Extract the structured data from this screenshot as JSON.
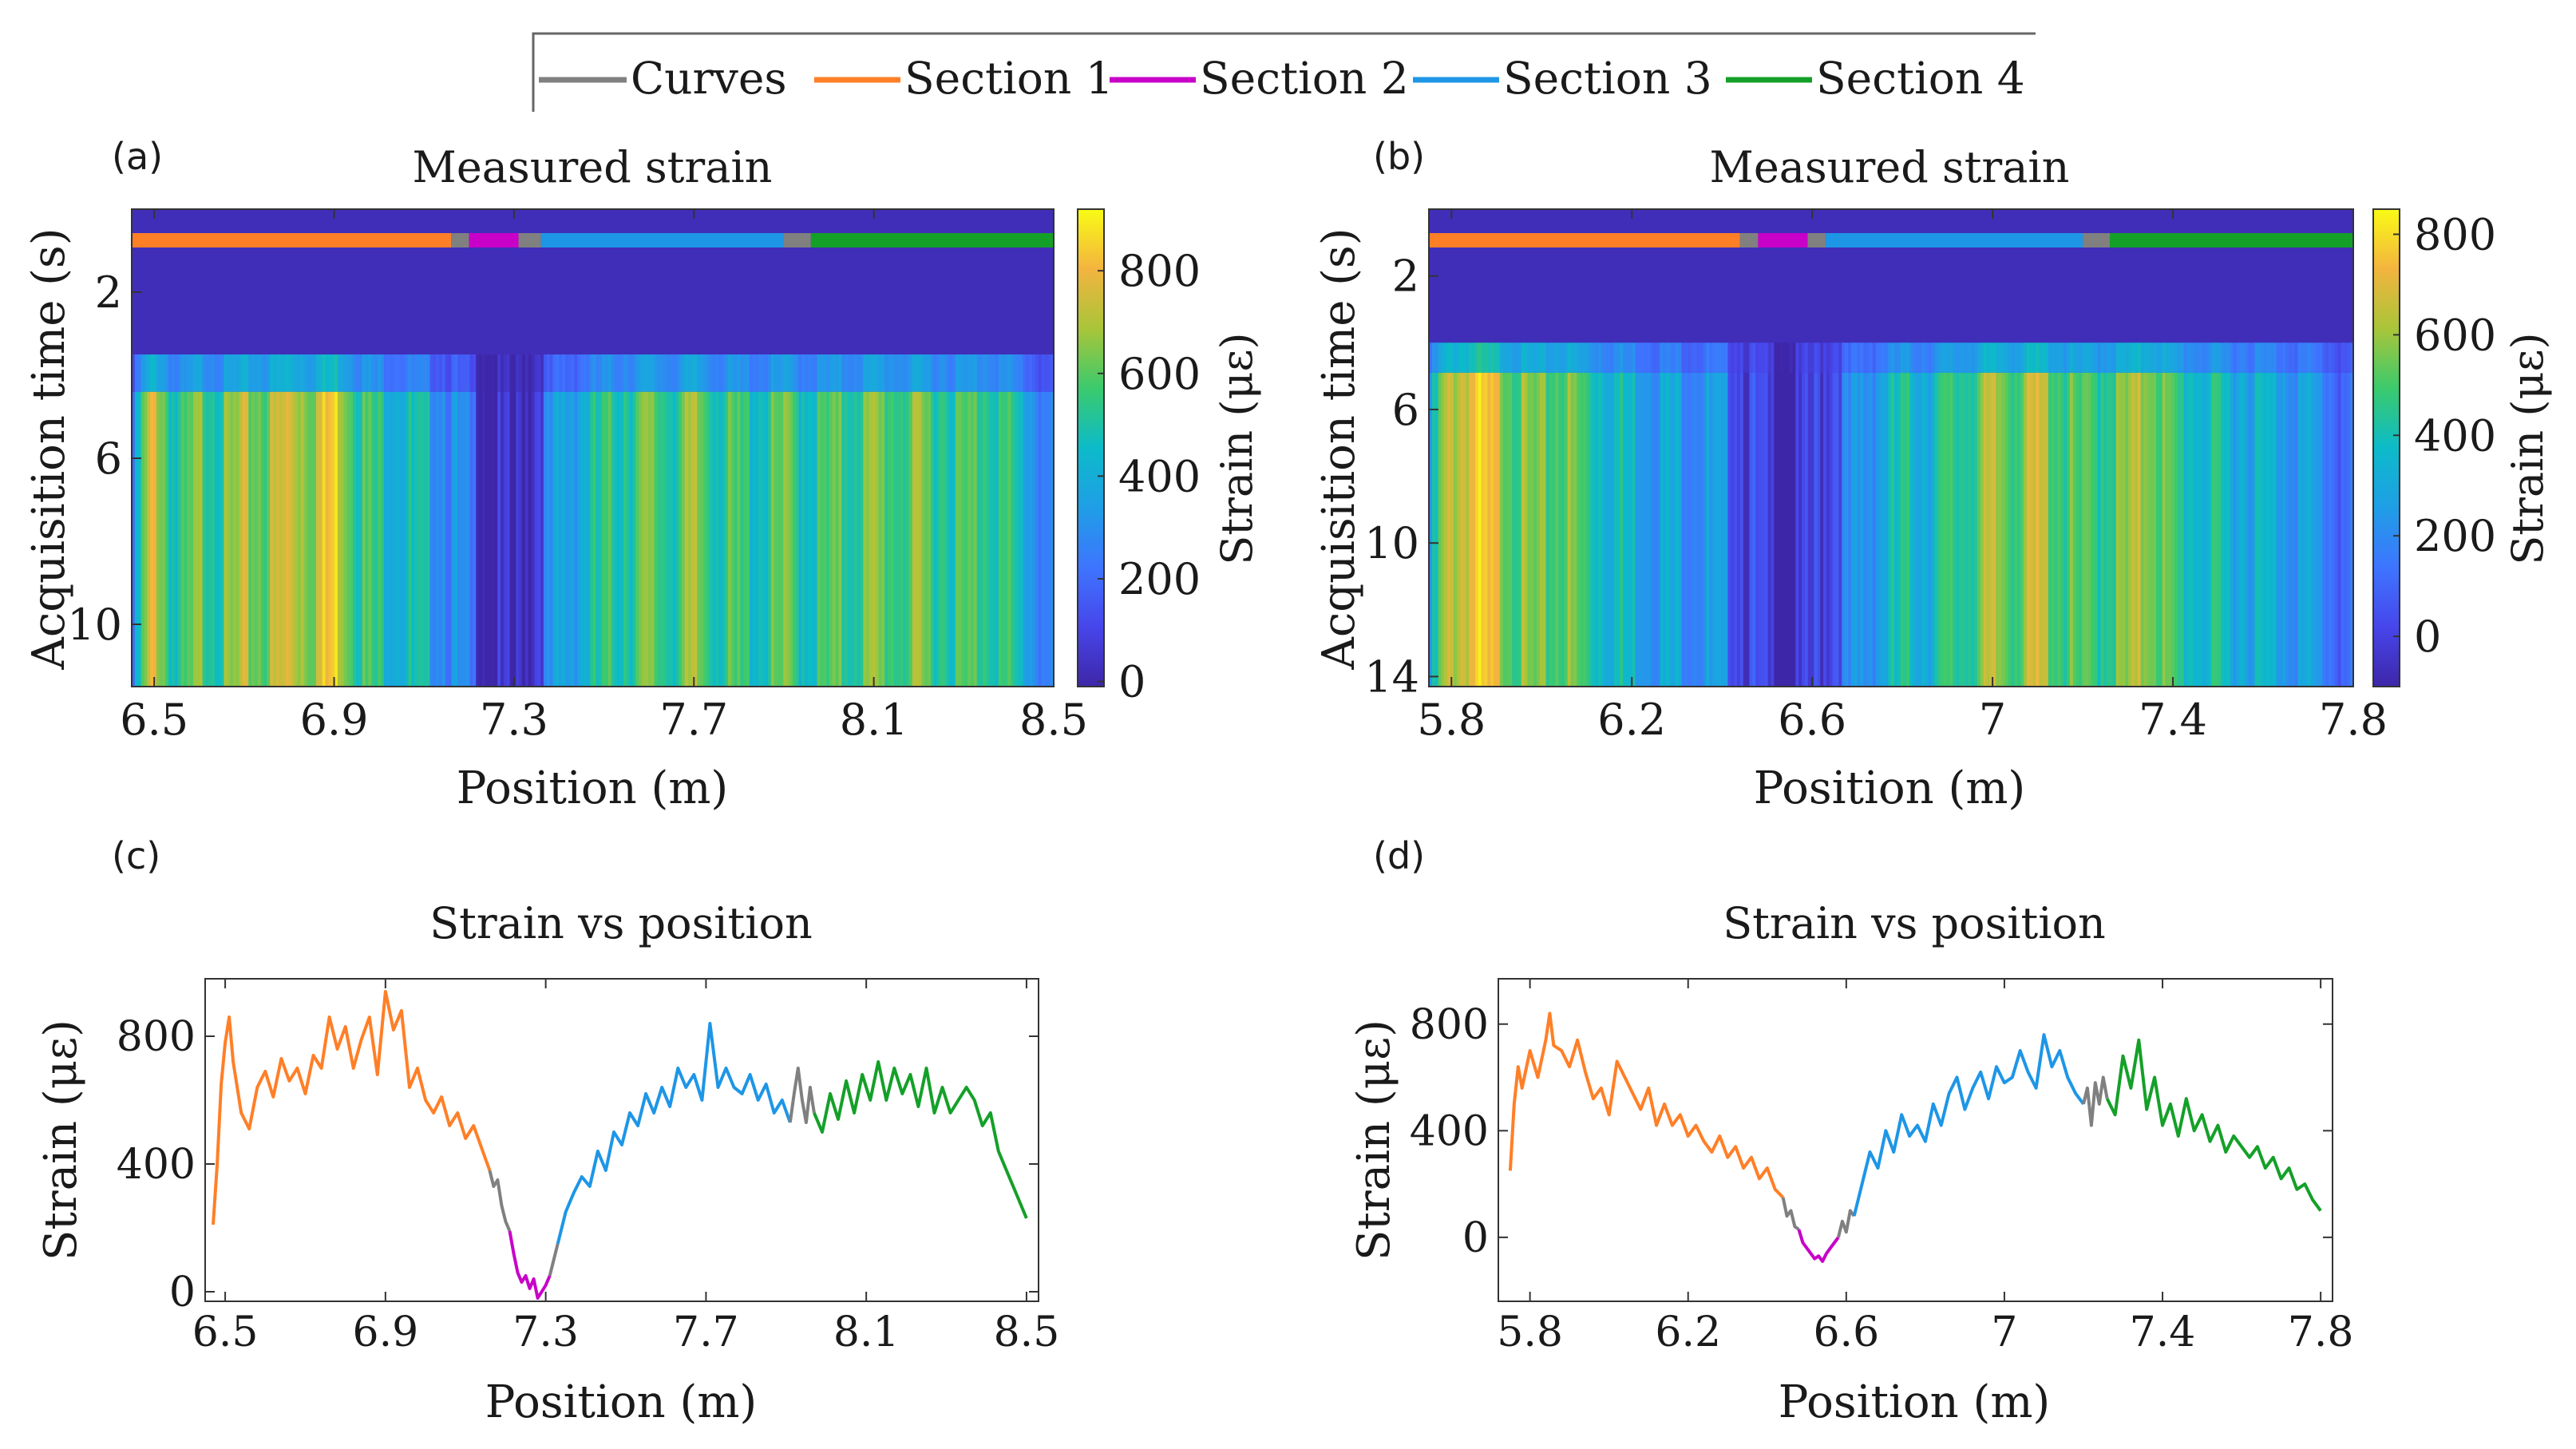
{
  "legend": {
    "items": [
      {
        "label": "Curves",
        "color": "#808080"
      },
      {
        "label": "Section 1",
        "color": "#ff7f27"
      },
      {
        "label": "Section 2",
        "color": "#c800c8"
      },
      {
        "label": "Section 3",
        "color": "#1e96e6"
      },
      {
        "label": "Section 4",
        "color": "#14a028"
      }
    ]
  },
  "panels": {
    "a": {
      "tag": "(a)",
      "title": "Measured strain",
      "xlabel": "Position (m)",
      "ylabel": "Acquisition time (s)",
      "cbar_label": "Strain (με)"
    },
    "b": {
      "tag": "(b)",
      "title": "Measured strain",
      "xlabel": "Position (m)",
      "ylabel": "Acquisition time (s)",
      "cbar_label": "Strain (με)"
    },
    "c": {
      "tag": "(c)",
      "title": "Strain vs position",
      "xlabel": "Position (m)",
      "ylabel": "Strain (με)"
    },
    "d": {
      "tag": "(d)",
      "title": "Strain vs position",
      "xlabel": "Position (m)",
      "ylabel": "Strain (με)"
    }
  },
  "chart_data": [
    {
      "id": "a",
      "type": "heatmap",
      "title": "Measured strain",
      "xlabel": "Position (m)",
      "ylabel": "Acquisition time (s)",
      "xlim": [
        6.45,
        8.5
      ],
      "ylim": [
        0,
        11.5
      ],
      "xticks": [
        6.5,
        6.9,
        7.3,
        7.7,
        8.1,
        8.5
      ],
      "xtick_labels": [
        "6.5",
        "6.9",
        "7.3",
        "7.7",
        "8.1",
        "8.5"
      ],
      "yticks": [
        2,
        6,
        10
      ],
      "ytick_labels": [
        "2",
        "6",
        "10"
      ],
      "clim": [
        -10,
        920
      ],
      "cticks": [
        0,
        200,
        400,
        600,
        800
      ],
      "ctick_labels": [
        "0",
        "200",
        "400",
        "600",
        "800"
      ],
      "load_onset_s": 3.5,
      "segments": [
        {
          "section": "Section 1",
          "from": 6.45,
          "to": 7.16
        },
        {
          "section": "Curves",
          "from": 7.16,
          "to": 7.2
        },
        {
          "section": "Section 2",
          "from": 7.2,
          "to": 7.31
        },
        {
          "section": "Curves",
          "from": 7.31,
          "to": 7.36
        },
        {
          "section": "Section 3",
          "from": 7.36,
          "to": 7.9
        },
        {
          "section": "Curves",
          "from": 7.9,
          "to": 7.96
        },
        {
          "section": "Section 4",
          "from": 7.96,
          "to": 8.5
        }
      ],
      "profile_x": [
        6.45,
        6.47,
        6.5,
        6.55,
        6.6,
        6.65,
        6.7,
        6.75,
        6.8,
        6.85,
        6.9,
        6.95,
        7.0,
        7.05,
        7.1,
        7.15,
        7.2,
        7.25,
        7.3,
        7.35,
        7.4,
        7.45,
        7.5,
        7.55,
        7.6,
        7.65,
        7.7,
        7.75,
        7.8,
        7.85,
        7.9,
        7.95,
        8.0,
        8.05,
        8.1,
        8.15,
        8.2,
        8.25,
        8.3,
        8.35,
        8.4,
        8.45,
        8.5
      ],
      "profile_strain": [
        200,
        550,
        850,
        500,
        680,
        620,
        720,
        700,
        820,
        750,
        900,
        650,
        560,
        520,
        470,
        380,
        250,
        70,
        30,
        180,
        380,
        480,
        550,
        620,
        650,
        600,
        700,
        600,
        580,
        560,
        640,
        560,
        600,
        620,
        680,
        640,
        660,
        620,
        600,
        650,
        560,
        420,
        240
      ]
    },
    {
      "id": "b",
      "type": "heatmap",
      "title": "Measured strain",
      "xlabel": "Position (m)",
      "ylabel": "Acquisition time (s)",
      "xlim": [
        5.75,
        7.8
      ],
      "ylim": [
        0,
        14.3
      ],
      "xticks": [
        5.8,
        6.2,
        6.6,
        7.0,
        7.4,
        7.8
      ],
      "xtick_labels": [
        "5.8",
        "6.2",
        "6.6",
        "7",
        "7.4",
        "7.8"
      ],
      "yticks": [
        2,
        6,
        10,
        14
      ],
      "ytick_labels": [
        "2",
        "6",
        "10",
        "14"
      ],
      "clim": [
        -100,
        850
      ],
      "cticks": [
        0,
        200,
        400,
        600,
        800
      ],
      "ctick_labels": [
        "0",
        "200",
        "400",
        "600",
        "800"
      ],
      "load_onset_s": 4.0,
      "segments": [
        {
          "section": "Section 1",
          "from": 5.75,
          "to": 6.44
        },
        {
          "section": "Curves",
          "from": 6.44,
          "to": 6.48
        },
        {
          "section": "Section 2",
          "from": 6.48,
          "to": 6.59
        },
        {
          "section": "Curves",
          "from": 6.59,
          "to": 6.63
        },
        {
          "section": "Section 3",
          "from": 6.63,
          "to": 7.2
        },
        {
          "section": "Curves",
          "from": 7.2,
          "to": 7.26
        },
        {
          "section": "Section 4",
          "from": 7.26,
          "to": 7.8
        }
      ],
      "profile_x": [
        5.75,
        5.78,
        5.8,
        5.85,
        5.9,
        5.95,
        6.0,
        6.05,
        6.1,
        6.15,
        6.2,
        6.25,
        6.3,
        6.35,
        6.4,
        6.45,
        6.5,
        6.55,
        6.6,
        6.65,
        6.7,
        6.75,
        6.8,
        6.85,
        6.9,
        6.95,
        7.0,
        7.05,
        7.1,
        7.15,
        7.2,
        7.25,
        7.3,
        7.35,
        7.4,
        7.45,
        7.5,
        7.55,
        7.6,
        7.65,
        7.7,
        7.75,
        7.8
      ],
      "profile_strain": [
        250,
        600,
        700,
        800,
        720,
        600,
        550,
        620,
        520,
        450,
        400,
        350,
        330,
        300,
        250,
        100,
        0,
        -70,
        30,
        150,
        250,
        350,
        450,
        420,
        480,
        550,
        650,
        600,
        700,
        580,
        500,
        560,
        600,
        700,
        500,
        460,
        420,
        400,
        380,
        350,
        300,
        230,
        120
      ]
    },
    {
      "id": "c",
      "type": "line",
      "title": "Strain vs position",
      "xlabel": "Position (m)",
      "ylabel": "Strain (με)",
      "xlim": [
        6.45,
        8.53
      ],
      "ylim": [
        -30,
        980
      ],
      "xticks": [
        6.5,
        6.9,
        7.3,
        7.7,
        8.1,
        8.5
      ],
      "xtick_labels": [
        "6.5",
        "6.9",
        "7.3",
        "7.7",
        "8.1",
        "8.5"
      ],
      "yticks": [
        0,
        400,
        800
      ],
      "ytick_labels": [
        "0",
        "400",
        "800"
      ],
      "series": [
        {
          "name": "Section 1",
          "x": [
            6.47,
            6.48,
            6.49,
            6.5,
            6.51,
            6.52,
            6.54,
            6.56,
            6.58,
            6.6,
            6.62,
            6.64,
            6.66,
            6.68,
            6.7,
            6.72,
            6.74,
            6.76,
            6.78,
            6.8,
            6.82,
            6.84,
            6.86,
            6.88,
            6.9,
            6.92,
            6.94,
            6.96,
            6.98,
            7.0,
            7.02,
            7.04,
            7.06,
            7.08,
            7.1,
            7.12,
            7.14,
            7.16
          ],
          "values": [
            210,
            400,
            650,
            780,
            860,
            720,
            560,
            510,
            640,
            690,
            610,
            730,
            660,
            700,
            620,
            740,
            700,
            860,
            760,
            830,
            700,
            790,
            860,
            680,
            940,
            820,
            880,
            640,
            700,
            600,
            560,
            610,
            520,
            560,
            480,
            520,
            450,
            380
          ]
        },
        {
          "name": "Curves",
          "x": [
            7.16,
            7.17,
            7.18,
            7.19,
            7.2,
            7.21
          ],
          "values": [
            380,
            330,
            350,
            270,
            220,
            190
          ]
        },
        {
          "name": "Section 2",
          "x": [
            7.21,
            7.22,
            7.23,
            7.24,
            7.25,
            7.26,
            7.27,
            7.28,
            7.29,
            7.3,
            7.31
          ],
          "values": [
            190,
            120,
            60,
            30,
            50,
            10,
            40,
            -20,
            0,
            20,
            50
          ]
        },
        {
          "name": "Curves",
          "x": [
            7.31,
            7.32,
            7.33
          ],
          "values": [
            50,
            100,
            150
          ]
        },
        {
          "name": "Section 3",
          "x": [
            7.33,
            7.35,
            7.37,
            7.39,
            7.41,
            7.43,
            7.45,
            7.47,
            7.49,
            7.51,
            7.53,
            7.55,
            7.57,
            7.59,
            7.61,
            7.63,
            7.65,
            7.67,
            7.69,
            7.71,
            7.73,
            7.75,
            7.77,
            7.79,
            7.81,
            7.83,
            7.85,
            7.87,
            7.89,
            7.91
          ],
          "values": [
            150,
            250,
            310,
            360,
            330,
            440,
            380,
            500,
            460,
            560,
            520,
            620,
            560,
            640,
            580,
            700,
            640,
            680,
            600,
            840,
            640,
            700,
            640,
            620,
            680,
            600,
            650,
            560,
            600,
            530
          ]
        },
        {
          "name": "Curves",
          "x": [
            7.91,
            7.92,
            7.93,
            7.94,
            7.95,
            7.96,
            7.97
          ],
          "values": [
            530,
            620,
            700,
            600,
            530,
            640,
            560
          ]
        },
        {
          "name": "Section 4",
          "x": [
            7.97,
            7.99,
            8.01,
            8.03,
            8.05,
            8.07,
            8.09,
            8.11,
            8.13,
            8.15,
            8.17,
            8.19,
            8.21,
            8.23,
            8.25,
            8.27,
            8.29,
            8.31,
            8.33,
            8.35,
            8.37,
            8.39,
            8.41,
            8.43,
            8.45,
            8.47,
            8.49,
            8.5
          ],
          "values": [
            560,
            500,
            620,
            540,
            660,
            560,
            680,
            600,
            720,
            600,
            700,
            620,
            680,
            580,
            700,
            560,
            640,
            560,
            600,
            640,
            600,
            520,
            560,
            440,
            380,
            320,
            260,
            230
          ]
        }
      ]
    },
    {
      "id": "d",
      "type": "line",
      "title": "Strain vs position",
      "xlabel": "Position (m)",
      "ylabel": "Strain (με)",
      "xlim": [
        5.72,
        7.83
      ],
      "ylim": [
        -240,
        970
      ],
      "xticks": [
        5.8,
        6.2,
        6.6,
        7.0,
        7.4,
        7.8
      ],
      "xtick_labels": [
        "5.8",
        "6.2",
        "6.6",
        "7",
        "7.4",
        "7.8"
      ],
      "yticks": [
        0,
        400,
        800
      ],
      "ytick_labels": [
        "0",
        "400",
        "800"
      ],
      "series": [
        {
          "name": "Section 1",
          "x": [
            5.75,
            5.76,
            5.77,
            5.78,
            5.8,
            5.82,
            5.84,
            5.85,
            5.86,
            5.88,
            5.9,
            5.92,
            5.94,
            5.96,
            5.98,
            6.0,
            6.02,
            6.04,
            6.06,
            6.08,
            6.1,
            6.12,
            6.14,
            6.16,
            6.18,
            6.2,
            6.22,
            6.24,
            6.26,
            6.28,
            6.3,
            6.32,
            6.34,
            6.36,
            6.38,
            6.4,
            6.42,
            6.44
          ],
          "values": [
            250,
            500,
            640,
            560,
            700,
            600,
            740,
            840,
            720,
            700,
            640,
            740,
            620,
            520,
            560,
            460,
            660,
            600,
            540,
            480,
            560,
            420,
            500,
            420,
            460,
            380,
            420,
            360,
            320,
            380,
            300,
            340,
            260,
            300,
            220,
            260,
            180,
            150
          ]
        },
        {
          "name": "Curves",
          "x": [
            6.44,
            6.45,
            6.46,
            6.47,
            6.48
          ],
          "values": [
            150,
            80,
            100,
            40,
            30
          ]
        },
        {
          "name": "Section 2",
          "x": [
            6.48,
            6.49,
            6.5,
            6.51,
            6.52,
            6.53,
            6.54,
            6.55,
            6.56,
            6.57,
            6.58
          ],
          "values": [
            30,
            -20,
            -40,
            -60,
            -80,
            -70,
            -90,
            -60,
            -40,
            -20,
            0
          ]
        },
        {
          "name": "Curves",
          "x": [
            6.58,
            6.59,
            6.6,
            6.61,
            6.62
          ],
          "values": [
            0,
            60,
            20,
            100,
            80
          ]
        },
        {
          "name": "Section 3",
          "x": [
            6.62,
            6.64,
            6.66,
            6.68,
            6.7,
            6.72,
            6.74,
            6.76,
            6.78,
            6.8,
            6.82,
            6.84,
            6.86,
            6.88,
            6.9,
            6.92,
            6.94,
            6.96,
            6.98,
            7.0,
            7.02,
            7.04,
            7.06,
            7.08,
            7.1,
            7.12,
            7.14,
            7.16,
            7.18,
            7.2
          ],
          "values": [
            80,
            200,
            320,
            260,
            400,
            320,
            460,
            380,
            420,
            360,
            500,
            420,
            540,
            600,
            480,
            560,
            620,
            520,
            640,
            580,
            600,
            700,
            620,
            560,
            760,
            640,
            700,
            600,
            540,
            500
          ]
        },
        {
          "name": "Curves",
          "x": [
            7.2,
            7.21,
            7.22,
            7.23,
            7.24,
            7.25,
            7.26
          ],
          "values": [
            500,
            560,
            420,
            580,
            500,
            600,
            520
          ]
        },
        {
          "name": "Section 4",
          "x": [
            7.26,
            7.28,
            7.3,
            7.32,
            7.34,
            7.36,
            7.38,
            7.4,
            7.42,
            7.44,
            7.46,
            7.48,
            7.5,
            7.52,
            7.54,
            7.56,
            7.58,
            7.6,
            7.62,
            7.64,
            7.66,
            7.68,
            7.7,
            7.72,
            7.74,
            7.76,
            7.78,
            7.8
          ],
          "values": [
            520,
            460,
            680,
            560,
            740,
            480,
            600,
            420,
            500,
            380,
            520,
            400,
            460,
            360,
            420,
            320,
            380,
            340,
            300,
            340,
            260,
            300,
            220,
            260,
            180,
            200,
            140,
            100
          ]
        }
      ]
    }
  ]
}
